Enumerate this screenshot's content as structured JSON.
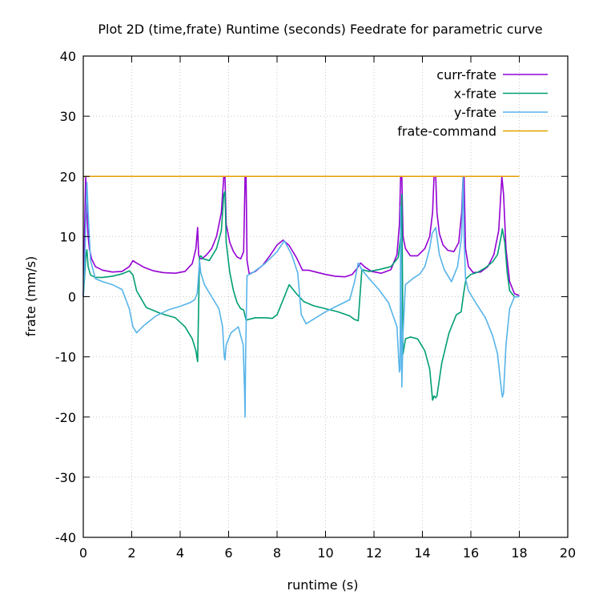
{
  "chart_data": {
    "type": "line",
    "title": "Plot 2D (time,frate) Runtime (seconds) Feedrate for parametric curve",
    "xlabel": "runtime (s)",
    "ylabel": "frate (mm/s)",
    "xlim": [
      0,
      20
    ],
    "ylim": [
      -40,
      40
    ],
    "xticks": [
      0,
      2,
      4,
      6,
      8,
      10,
      12,
      14,
      16,
      18,
      20
    ],
    "yticks": [
      -40,
      -30,
      -20,
      -10,
      0,
      10,
      20,
      30,
      40
    ],
    "grid": true,
    "legend_position": "top-right",
    "series": [
      {
        "name": "curr-frate",
        "color": "#9400d3",
        "x": [
          0.0,
          0.05,
          0.1,
          0.15,
          0.2,
          0.25,
          0.35,
          0.5,
          0.8,
          1.2,
          1.6,
          1.9,
          2.05,
          2.2,
          2.5,
          2.9,
          3.3,
          3.8,
          4.2,
          4.5,
          4.65,
          4.72,
          4.76,
          4.8,
          4.9,
          5.1,
          5.3,
          5.5,
          5.7,
          5.8,
          5.85,
          5.9,
          6.05,
          6.2,
          6.35,
          6.5,
          6.62,
          6.68,
          6.72,
          6.76,
          6.85,
          7.1,
          7.4,
          7.7,
          8.0,
          8.25,
          8.5,
          8.8,
          9.05,
          9.3,
          9.6,
          10.0,
          10.4,
          10.8,
          11.1,
          11.3,
          11.45,
          11.6,
          11.9,
          12.3,
          12.7,
          12.95,
          13.05,
          13.1,
          13.15,
          13.2,
          13.3,
          13.5,
          13.8,
          14.1,
          14.3,
          14.42,
          14.48,
          14.55,
          14.6,
          14.7,
          14.85,
          15.05,
          15.3,
          15.5,
          15.62,
          15.68,
          15.72,
          15.78,
          15.9,
          16.1,
          16.4,
          16.7,
          16.95,
          17.15,
          17.28,
          17.35,
          17.45,
          17.6,
          17.8,
          18.0
        ],
        "y": [
          0.0,
          10.0,
          20.0,
          14.0,
          10.0,
          8.0,
          6.2,
          5.0,
          4.4,
          4.1,
          4.2,
          5.0,
          6.0,
          5.6,
          4.9,
          4.3,
          4.0,
          3.9,
          4.2,
          5.5,
          8.0,
          11.5,
          7.0,
          6.4,
          6.3,
          7.0,
          8.0,
          10.0,
          14.0,
          20.0,
          20.0,
          12.0,
          9.0,
          7.5,
          6.6,
          6.3,
          7.5,
          20.0,
          20.0,
          6.0,
          3.8,
          4.2,
          5.2,
          6.8,
          8.6,
          9.4,
          8.5,
          6.5,
          4.4,
          4.4,
          4.1,
          3.7,
          3.4,
          3.3,
          3.7,
          4.7,
          5.6,
          5.0,
          4.2,
          3.9,
          4.5,
          7.0,
          12.0,
          20.0,
          20.0,
          10.0,
          8.0,
          6.8,
          6.8,
          8.0,
          10.0,
          14.0,
          20.0,
          20.0,
          14.0,
          10.5,
          8.6,
          7.7,
          7.5,
          9.0,
          14.0,
          20.0,
          20.0,
          8.0,
          5.0,
          4.0,
          4.1,
          5.0,
          7.0,
          11.0,
          20.0,
          17.0,
          8.0,
          2.5,
          0.5,
          0.2
        ]
      },
      {
        "name": "x-frate",
        "color": "#009e73",
        "x": [
          0.0,
          0.05,
          0.1,
          0.15,
          0.2,
          0.3,
          0.5,
          0.8,
          1.2,
          1.6,
          1.9,
          2.05,
          2.2,
          2.6,
          3.2,
          3.8,
          4.2,
          4.5,
          4.65,
          4.72,
          4.76,
          4.8,
          4.85,
          4.95,
          5.2,
          5.5,
          5.7,
          5.8,
          5.85,
          5.9,
          6.05,
          6.2,
          6.35,
          6.5,
          6.62,
          6.68,
          6.72,
          6.8,
          7.1,
          7.5,
          7.8,
          8.0,
          8.25,
          8.5,
          8.8,
          9.1,
          9.5,
          10.0,
          10.5,
          11.0,
          11.2,
          11.35,
          11.5,
          11.8,
          12.2,
          12.7,
          13.0,
          13.1,
          13.15,
          13.2,
          13.3,
          13.5,
          13.8,
          14.1,
          14.3,
          14.42,
          14.48,
          14.55,
          14.6,
          14.8,
          15.1,
          15.4,
          15.6,
          15.7,
          15.8,
          16.0,
          16.3,
          16.6,
          16.9,
          17.1,
          17.25,
          17.3,
          17.4,
          17.5,
          17.6,
          17.8,
          18.0
        ],
        "y": [
          0.0,
          3.0,
          6.5,
          7.8,
          5.0,
          3.6,
          3.2,
          3.2,
          3.4,
          3.8,
          4.3,
          3.6,
          1.0,
          -1.8,
          -2.8,
          -3.5,
          -5.0,
          -7.0,
          -9.0,
          -10.8,
          -2.0,
          6.5,
          6.8,
          6.3,
          6.0,
          8.0,
          11.0,
          17.0,
          17.5,
          9.0,
          4.0,
          1.0,
          -1.0,
          -2.0,
          -2.2,
          -3.2,
          -3.9,
          -3.8,
          -3.5,
          -3.5,
          -3.6,
          -3.0,
          -0.5,
          2.0,
          0.5,
          -0.8,
          -1.5,
          -2.0,
          -2.5,
          -3.2,
          -3.8,
          -4.0,
          4.5,
          4.2,
          4.5,
          5.0,
          6.5,
          10.0,
          17.0,
          -9.5,
          -7.0,
          -6.7,
          -7.0,
          -9.0,
          -12.0,
          -17.2,
          -16.5,
          -16.8,
          -16.5,
          -11.0,
          -6.0,
          -3.0,
          -2.5,
          0.5,
          3.0,
          3.7,
          4.1,
          4.8,
          5.8,
          7.0,
          10.0,
          11.3,
          9.0,
          4.0,
          1.0,
          0.0,
          0.0
        ]
      },
      {
        "name": "y-frate",
        "color": "#56b4e9",
        "x": [
          0.0,
          0.05,
          0.1,
          0.15,
          0.2,
          0.3,
          0.5,
          0.8,
          1.2,
          1.6,
          1.9,
          2.05,
          2.2,
          2.5,
          3.0,
          3.5,
          4.0,
          4.4,
          4.6,
          4.7,
          4.75,
          4.8,
          4.85,
          5.0,
          5.3,
          5.6,
          5.75,
          5.82,
          5.85,
          5.9,
          6.1,
          6.4,
          6.6,
          6.66,
          6.68,
          6.7,
          6.76,
          7.0,
          7.5,
          8.0,
          8.3,
          8.6,
          8.85,
          9.0,
          9.2,
          9.6,
          10.0,
          10.5,
          11.0,
          11.2,
          11.35,
          11.5,
          11.8,
          12.2,
          12.6,
          12.95,
          13.05,
          13.08,
          13.1,
          13.15,
          13.2,
          13.3,
          13.6,
          13.9,
          14.1,
          14.3,
          14.4,
          14.55,
          14.7,
          14.9,
          15.2,
          15.45,
          15.62,
          15.68,
          15.72,
          15.78,
          15.9,
          16.2,
          16.6,
          16.9,
          17.1,
          17.22,
          17.3,
          17.35,
          17.45,
          17.6,
          17.8,
          18.0
        ],
        "y": [
          0.0,
          4.0,
          12.0,
          19.0,
          14.0,
          6.0,
          3.0,
          2.5,
          2.0,
          1.2,
          -2.0,
          -5.0,
          -6.0,
          -4.8,
          -3.2,
          -2.2,
          -1.6,
          -1.0,
          -0.5,
          0.5,
          3.0,
          6.0,
          4.0,
          2.0,
          0.0,
          -2.0,
          -5.0,
          -10.0,
          -10.5,
          -8.0,
          -6.0,
          -5.0,
          -8.0,
          -16.0,
          -20.0,
          -10.0,
          3.5,
          4.0,
          5.5,
          7.5,
          9.3,
          7.0,
          4.0,
          -3.0,
          -4.5,
          -3.5,
          -2.5,
          -1.5,
          -0.5,
          2.5,
          5.6,
          4.5,
          3.0,
          1.2,
          -1.0,
          -5.0,
          -12.5,
          -12.0,
          15.0,
          -15.0,
          -6.0,
          2.0,
          3.0,
          3.8,
          5.0,
          8.0,
          10.5,
          11.5,
          7.0,
          4.5,
          2.5,
          5.0,
          10.0,
          20.0,
          10.0,
          3.0,
          1.0,
          -1.0,
          -3.5,
          -6.5,
          -9.5,
          -14.0,
          -16.7,
          -16.0,
          -8.0,
          -2.0,
          0.0,
          0.0
        ]
      },
      {
        "name": "frate-command",
        "color": "#e69f00",
        "x": [
          0.0,
          18.0
        ],
        "y": [
          20.0,
          20.0
        ]
      }
    ]
  }
}
